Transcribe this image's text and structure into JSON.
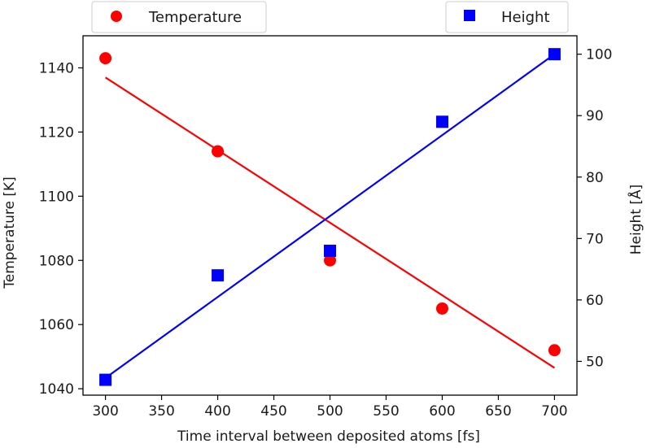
{
  "chart_data": {
    "type": "scatter",
    "xlabel": "Time interval between deposited atoms [fs]",
    "ylabel_left": "Temperature [K]",
    "ylabel_right": "Height [Å]",
    "x": [
      300,
      400,
      500,
      600,
      700
    ],
    "x_ticks": [
      300,
      350,
      400,
      450,
      500,
      550,
      600,
      650,
      700
    ],
    "xlim": [
      280,
      720
    ],
    "ylim_left": [
      1038,
      1150
    ],
    "ylim_right": [
      44.5,
      103
    ],
    "y_ticks_left": [
      1040,
      1060,
      1080,
      1100,
      1120,
      1140
    ],
    "y_ticks_right": [
      50,
      60,
      70,
      80,
      90,
      100
    ],
    "grid": false,
    "series": [
      {
        "name": "Temperature",
        "axis": "left",
        "marker": "circle",
        "color": "#ff0000",
        "values": [
          1143,
          1114,
          1080,
          1065,
          1052
        ],
        "fit": {
          "x": [
            300,
            700
          ],
          "y": [
            1137,
            1046.5
          ]
        }
      },
      {
        "name": "Height",
        "axis": "right",
        "marker": "square",
        "color": "#0000ff",
        "values": [
          47,
          64,
          68,
          89,
          100
        ],
        "fit": {
          "x": [
            300,
            700
          ],
          "y": [
            47.3,
            100
          ]
        }
      }
    ],
    "legend": [
      {
        "label": "Temperature",
        "position": "top-left"
      },
      {
        "label": "Height",
        "position": "top-right"
      }
    ]
  }
}
